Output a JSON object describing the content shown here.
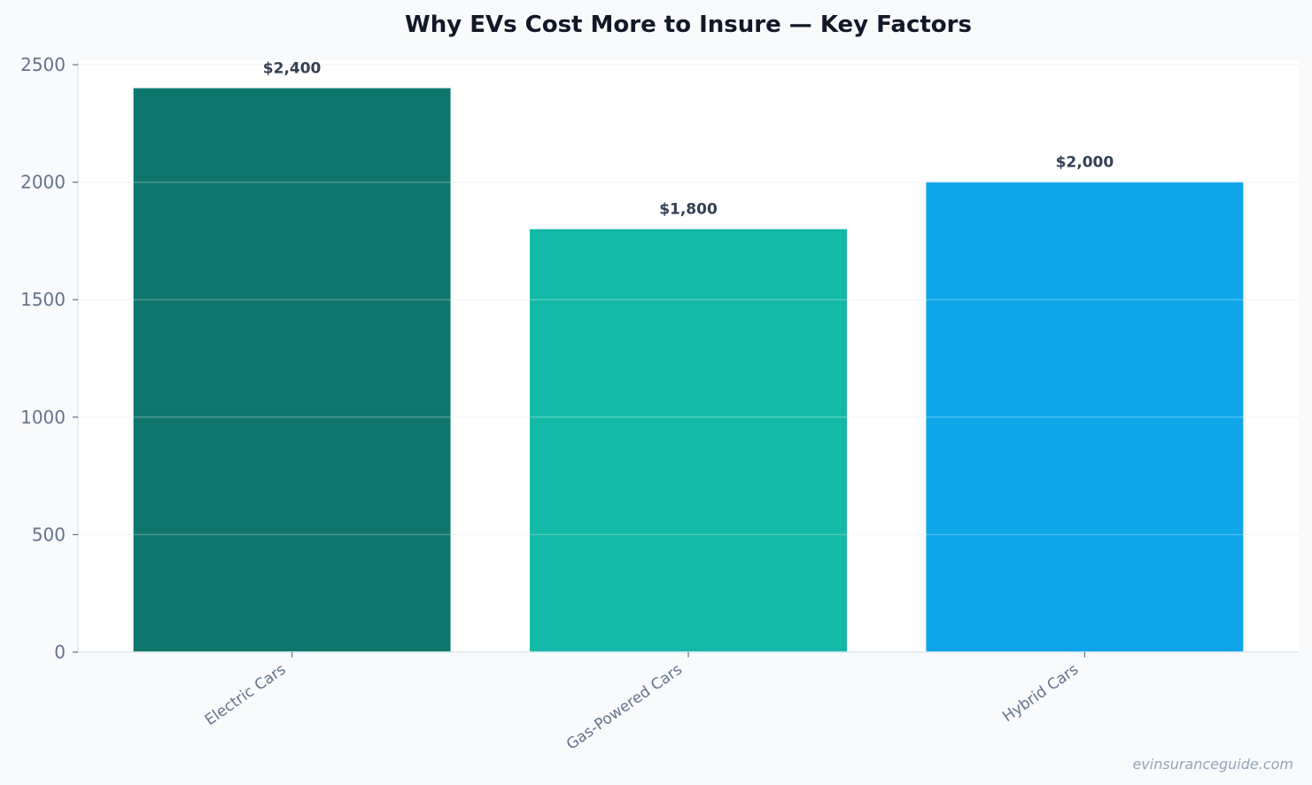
{
  "chart_data": {
    "type": "bar",
    "title": "Why EVs Cost More to Insure — Key Factors",
    "xlabel": "",
    "ylabel": "",
    "categories": [
      "Electric Cars",
      "Gas-Powered Cars",
      "Hybrid Cars"
    ],
    "values": [
      2400,
      1800,
      2000
    ],
    "data_labels": [
      "$2,400",
      "$1,800",
      "$2,000"
    ],
    "colors": [
      "#0f766e",
      "#14b8a6",
      "#0ea5e9"
    ],
    "ylim": [
      0,
      2500
    ],
    "yticks": [
      0,
      500,
      1000,
      1500,
      2000,
      2500
    ],
    "grid": true,
    "legend": "none"
  },
  "watermark": "evinsuranceguide.com"
}
